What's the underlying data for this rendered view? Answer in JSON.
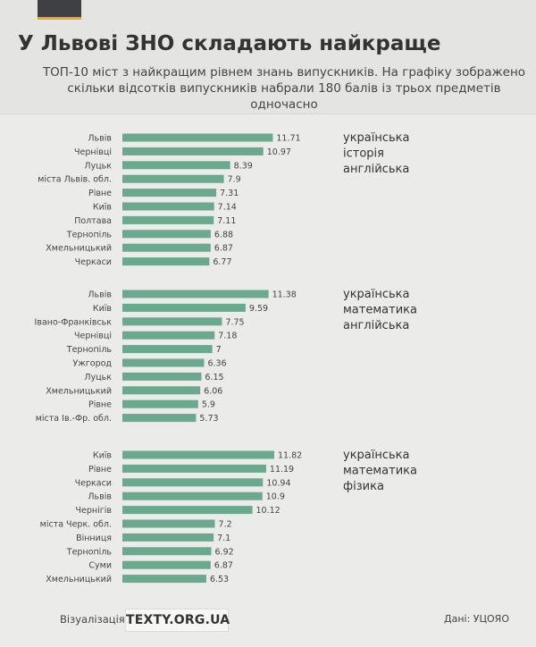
{
  "header": {
    "title": "У Львові ЗНО складають найкраще",
    "subtitle": "ТОП-10 міст з найкращим рівнем знань випускників.  На графіку зображено скільки відсотків випускників набрали 180 балів із трьох предметів одночасно"
  },
  "footer": {
    "viz_label": "Візуалізація –",
    "brand": "TEXTY.ORG.UA",
    "source": "Дані: УЦОЯО"
  },
  "colors": {
    "bar": "#6aa98d",
    "background": "#ebebea",
    "header": "#e4e4e3",
    "accent": "#f4a51c"
  },
  "chart_data": [
    {
      "type": "bar",
      "orientation": "horizontal",
      "subjects": [
        "українська",
        "історія",
        "англійська"
      ],
      "categories": [
        "Львів",
        "Чернівці",
        "Луцьк",
        "міста Львів. обл.",
        "Рівне",
        "Київ",
        "Полтава",
        "Тернопіль",
        "Хмельницький",
        "Черкаси"
      ],
      "values": [
        11.71,
        10.97,
        8.39,
        7.9,
        7.31,
        7.14,
        7.11,
        6.88,
        6.87,
        6.77
      ],
      "value_labels": [
        "11.71",
        "10.97",
        "8.39",
        "7.9",
        "7.31",
        "7.14",
        "7.11",
        "6.88",
        "6.87",
        "6.77"
      ]
    },
    {
      "type": "bar",
      "orientation": "horizontal",
      "subjects": [
        "українська",
        "математика",
        "англійська"
      ],
      "categories": [
        "Львів",
        "Київ",
        "Івано-Франківськ",
        "Чернівці",
        "Тернопіль",
        "Ужгород",
        "Луцьк",
        "Хмельницький",
        "Рівне",
        "міста Ів.-Фр. обл."
      ],
      "values": [
        11.38,
        9.59,
        7.75,
        7.18,
        7,
        6.36,
        6.15,
        6.06,
        5.9,
        5.73
      ],
      "value_labels": [
        "11.38",
        "9.59",
        "7.75",
        "7.18",
        "7",
        "6.36",
        "6.15",
        "6.06",
        "5.9",
        "5.73"
      ]
    },
    {
      "type": "bar",
      "orientation": "horizontal",
      "subjects": [
        "українська",
        "математика",
        "фізика"
      ],
      "categories": [
        "Київ",
        "Рівне",
        "Черкаси",
        "Львів",
        "Чернігів",
        "міста Черк. обл.",
        "Вінниця",
        "Тернопіль",
        "Суми",
        "Хмельницький"
      ],
      "values": [
        11.82,
        11.19,
        10.94,
        10.9,
        10.12,
        7.2,
        7.1,
        6.92,
        6.87,
        6.53
      ],
      "value_labels": [
        "11.82",
        "11.19",
        "10.94",
        "10.9",
        "10.12",
        "7.2",
        "7.1",
        "6.92",
        "6.87",
        "6.53"
      ]
    }
  ]
}
